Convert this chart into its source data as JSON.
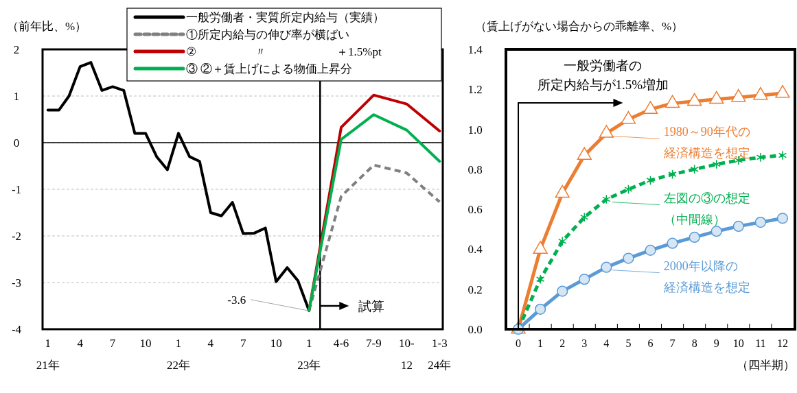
{
  "chart_data": [
    {
      "type": "line",
      "ylabel": "（前年比、%）",
      "xlim": [
        "2020-12-17",
        "2024-01-10"
      ],
      "xticks": [
        {
          "value": "2021-01",
          "label": "1\n\n21年"
        },
        {
          "value": "2021-04",
          "label": "4"
        },
        {
          "value": "2021-07",
          "label": "7"
        },
        {
          "value": "2021-10",
          "label": "10"
        },
        {
          "value": "2022-01",
          "label": "1\n\n22年"
        },
        {
          "value": "2022-04",
          "label": "4"
        },
        {
          "value": "2022-07",
          "label": "7"
        },
        {
          "value": "2022-10",
          "label": "10"
        },
        {
          "value": "2023-01",
          "label": "1\n\n23年"
        },
        {
          "value": "2023-04",
          "label": "4-6"
        },
        {
          "value": "2023-07",
          "label": "7-9"
        },
        {
          "value": "2023-10",
          "label": "10-\n12"
        },
        {
          "value": "2024-01",
          "label": "1-3\n\n24年"
        }
      ],
      "ylim": [
        -4,
        2
      ],
      "yticks": [
        -4,
        -3,
        -2,
        -1,
        0,
        1,
        2
      ],
      "grid": "y",
      "legend": "top",
      "ref_lines": [
        {
          "axis": "y",
          "value": 0
        },
        {
          "axis": "x",
          "value": "2023-02"
        }
      ],
      "annotations": [
        {
          "text": "-3.6",
          "x": "2023-01",
          "y": -3.6
        },
        "試算"
      ],
      "series": [
        {
          "name": "一般労働者・実質所定内給与（実績）",
          "color": "#000000",
          "x": [
            "2021-01",
            "2021-02",
            "2021-03",
            "2021-04",
            "2021-05",
            "2021-06",
            "2021-07",
            "2021-08",
            "2021-09",
            "2021-10",
            "2021-11",
            "2021-12",
            "2022-01",
            "2022-02",
            "2022-03",
            "2022-04",
            "2022-05",
            "2022-06",
            "2022-07",
            "2022-08",
            "2022-09",
            "2022-10",
            "2022-11",
            "2022-12",
            "2023-01"
          ],
          "values": [
            0.7,
            0.7,
            1.0,
            1.63,
            1.72,
            1.12,
            1.2,
            1.12,
            0.2,
            0.2,
            -0.3,
            -0.58,
            0.2,
            -0.3,
            -0.4,
            -1.5,
            -1.57,
            -1.28,
            -1.95,
            -1.94,
            -1.83,
            -2.98,
            -2.68,
            -2.96,
            -3.6
          ]
        },
        {
          "name": "①所定内給与の伸び率が横ばい",
          "color": "#808080",
          "line_style": "dashed",
          "x": [
            "2023-01",
            "2023-04",
            "2023-07",
            "2023-10",
            "2024-01"
          ],
          "values": [
            -3.6,
            -1.15,
            -0.48,
            -0.65,
            -1.27
          ]
        },
        {
          "name": "②　　　　　〃　　　　　　＋1.5%pt",
          "color": "#c00000",
          "x": [
            "2023-01",
            "2023-04",
            "2023-07",
            "2023-10",
            "2024-01"
          ],
          "values": [
            -3.6,
            0.33,
            1.02,
            0.83,
            0.25
          ]
        },
        {
          "name": "③ ②＋賃上げによる物価上昇分",
          "color": "#00b050",
          "x": [
            "2023-01",
            "2023-04",
            "2023-07",
            "2023-10",
            "2024-01"
          ],
          "values": [
            -3.6,
            0.07,
            0.6,
            0.27,
            -0.4
          ]
        }
      ]
    },
    {
      "type": "line",
      "ylabel": "（賃上げがない場合からの乖離率、%）",
      "xlabel": "（四半期）",
      "categories": [
        "0",
        "1",
        "2",
        "3",
        "4",
        "5",
        "6",
        "7",
        "8",
        "9",
        "10",
        "11",
        "12"
      ],
      "ylim": [
        0,
        1.4
      ],
      "yticks": [
        {
          "value": 0,
          "label": "0.0"
        },
        {
          "value": 0.2,
          "label": "0.2"
        },
        {
          "value": 0.4,
          "label": "0.4"
        },
        {
          "value": 0.6,
          "label": "0.6"
        },
        {
          "value": 0.8,
          "label": "0.8"
        },
        {
          "value": 1,
          "label": "1.0"
        },
        {
          "value": 1.2,
          "label": "1.2"
        },
        {
          "value": 1.4,
          "label": "1.4"
        }
      ],
      "annotations": [
        "一般労働者の所定内給与が1.5%増加"
      ],
      "legend": "right",
      "series": [
        {
          "name": "1980～90年代の経済構造を想定",
          "color": "#ed7d31",
          "marker": "triangle",
          "values": [
            0,
            0.4,
            0.68,
            0.87,
            0.98,
            1.05,
            1.1,
            1.13,
            1.14,
            1.15,
            1.16,
            1.17,
            1.18
          ]
        },
        {
          "name": "左図の③の想定（中間線）",
          "color": "#00b050",
          "marker": "cross",
          "line_style": "dashed",
          "values": [
            0,
            0.25,
            0.44,
            0.56,
            0.65,
            0.7,
            0.745,
            0.775,
            0.8,
            0.825,
            0.845,
            0.86,
            0.87
          ]
        },
        {
          "name": "2000年以降の経済構造を想定",
          "color": "#5b9bd5",
          "marker": "circle",
          "values": [
            0,
            0.1,
            0.19,
            0.25,
            0.31,
            0.355,
            0.395,
            0.43,
            0.46,
            0.49,
            0.515,
            0.535,
            0.555
          ]
        }
      ]
    }
  ]
}
